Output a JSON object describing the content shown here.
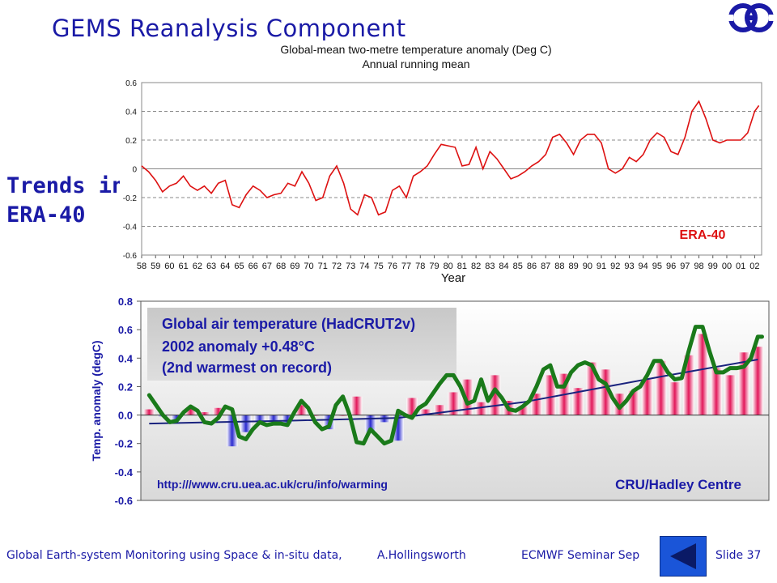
{
  "slide": {
    "title": "GEMS Reanalysis Component",
    "side_heading_line1": "Trends in",
    "side_heading_line2": "ERA-40",
    "footer_left": "Global Earth-system Monitoring using Space & in-situ data,",
    "footer_author": "A.Hollingsworth",
    "footer_mid": "ECMWF Seminar Sep",
    "footer_right": "Slide 37",
    "logo_icon": "ecmwf-logo-icon",
    "nav_icon": "triangle-left-icon"
  },
  "chart_data": [
    {
      "type": "line",
      "title": "Global-mean two-metre temperature anomaly (Deg C)",
      "subtitle": "Annual running mean",
      "xlabel": "Year",
      "ylabel": "",
      "ylim": [
        -0.6,
        0.6
      ],
      "yticks": [
        "0.6",
        "0.4",
        "0.2",
        "0",
        "-0.2",
        "-0.4",
        "-0.6"
      ],
      "xticks": [
        "58",
        "59",
        "60",
        "61",
        "62",
        "63",
        "64",
        "65",
        "66",
        "67",
        "68",
        "69",
        "70",
        "71",
        "72",
        "73",
        "74",
        "75",
        "76",
        "77",
        "78",
        "79",
        "80",
        "81",
        "82",
        "83",
        "84",
        "85",
        "86",
        "87",
        "88",
        "89",
        "90",
        "91",
        "92",
        "93",
        "94",
        "95",
        "96",
        "97",
        "98",
        "99",
        "00",
        "01",
        "02"
      ],
      "grid": true,
      "series": [
        {
          "name": "ERA-40",
          "color": "#dd1111",
          "x": [
            1958.0,
            1958.5,
            1959.0,
            1959.5,
            1960.0,
            1960.5,
            1961.0,
            1961.5,
            1962.0,
            1962.5,
            1963.0,
            1963.5,
            1964.0,
            1964.5,
            1965.0,
            1965.5,
            1966.0,
            1966.5,
            1967.0,
            1967.5,
            1968.0,
            1968.5,
            1969.0,
            1969.5,
            1970.0,
            1970.5,
            1971.0,
            1971.5,
            1972.0,
            1972.5,
            1973.0,
            1973.5,
            1974.0,
            1974.5,
            1975.0,
            1975.5,
            1976.0,
            1976.5,
            1977.0,
            1977.5,
            1978.0,
            1978.5,
            1979.0,
            1979.5,
            1980.0,
            1980.5,
            1981.0,
            1981.5,
            1982.0,
            1982.5,
            1983.0,
            1983.5,
            1984.0,
            1984.5,
            1985.0,
            1985.5,
            1986.0,
            1986.5,
            1987.0,
            1987.5,
            1988.0,
            1988.5,
            1989.0,
            1989.5,
            1990.0,
            1990.5,
            1991.0,
            1991.5,
            1992.0,
            1992.5,
            1993.0,
            1993.5,
            1994.0,
            1994.5,
            1995.0,
            1995.5,
            1996.0,
            1996.5,
            1997.0,
            1997.5,
            1998.0,
            1998.5,
            1999.0,
            1999.5,
            2000.0,
            2000.5,
            2001.0,
            2001.5,
            2002.0,
            2002.3
          ],
          "values": [
            0.02,
            -0.02,
            -0.08,
            -0.16,
            -0.12,
            -0.1,
            -0.05,
            -0.12,
            -0.15,
            -0.12,
            -0.17,
            -0.1,
            -0.08,
            -0.25,
            -0.27,
            -0.18,
            -0.12,
            -0.15,
            -0.2,
            -0.18,
            -0.17,
            -0.1,
            -0.12,
            -0.02,
            -0.1,
            -0.22,
            -0.2,
            -0.05,
            0.02,
            -0.1,
            -0.28,
            -0.32,
            -0.18,
            -0.2,
            -0.32,
            -0.3,
            -0.15,
            -0.12,
            -0.2,
            -0.05,
            -0.02,
            0.02,
            0.1,
            0.17,
            0.16,
            0.15,
            0.02,
            0.03,
            0.15,
            0.0,
            0.12,
            0.07,
            0.0,
            -0.07,
            -0.05,
            -0.02,
            0.02,
            0.05,
            0.1,
            0.22,
            0.24,
            0.18,
            0.1,
            0.2,
            0.24,
            0.24,
            0.18,
            0.0,
            -0.03,
            0.0,
            0.08,
            0.05,
            0.1,
            0.2,
            0.25,
            0.22,
            0.12,
            0.1,
            0.22,
            0.4,
            0.47,
            0.35,
            0.2,
            0.18,
            0.2,
            0.2,
            0.2,
            0.25,
            0.4,
            0.44
          ]
        }
      ],
      "annotation": "ERA-40"
    },
    {
      "type": "bar",
      "title": "Global air temperature (HadCRUT2v)",
      "info_line2": "2002 anomaly +0.48°C",
      "info_line3": "(2nd warmest on record)",
      "xlabel": "",
      "ylabel": "Temp. anomaly (degC)",
      "ylim": [
        -0.6,
        0.8
      ],
      "yticks": [
        "0.8",
        "0.6",
        "0.4",
        "0.2",
        "0.0",
        "-0.2",
        "-0.4",
        "-0.6"
      ],
      "grid": false,
      "url": "http:///www.cru.uea.ac.uk/cru/info/warming",
      "source": "CRU/Hadley Centre",
      "bars": {
        "x": [
          1958,
          1959,
          1960,
          1961,
          1962,
          1963,
          1964,
          1965,
          1966,
          1967,
          1968,
          1969,
          1970,
          1971,
          1972,
          1973,
          1974,
          1975,
          1976,
          1977,
          1978,
          1979,
          1980,
          1981,
          1982,
          1983,
          1984,
          1985,
          1986,
          1987,
          1988,
          1989,
          1990,
          1991,
          1992,
          1993,
          1994,
          1995,
          1996,
          1997,
          1998,
          1999,
          2000,
          2001,
          2002
        ],
        "values": [
          0.04,
          -0.01,
          -0.03,
          0.05,
          0.02,
          0.05,
          -0.22,
          -0.12,
          -0.05,
          -0.04,
          -0.06,
          0.07,
          0.0,
          -0.1,
          0.0,
          0.13,
          -0.12,
          -0.05,
          -0.18,
          0.12,
          0.04,
          0.07,
          0.16,
          0.25,
          0.09,
          0.28,
          0.1,
          0.06,
          0.15,
          0.28,
          0.29,
          0.19,
          0.37,
          0.32,
          0.15,
          0.17,
          0.25,
          0.38,
          0.23,
          0.42,
          0.57,
          0.33,
          0.28,
          0.44,
          0.48
        ]
      },
      "series": [
        {
          "name": "ERA-40",
          "color": "#1a7a1a",
          "x": [
            1958.0,
            1958.5,
            1959.0,
            1959.5,
            1960.0,
            1960.5,
            1961.0,
            1961.5,
            1962.0,
            1962.5,
            1963.0,
            1963.5,
            1964.0,
            1964.5,
            1965.0,
            1965.5,
            1966.0,
            1966.5,
            1967.0,
            1967.5,
            1968.0,
            1968.5,
            1969.0,
            1969.5,
            1970.0,
            1970.5,
            1971.0,
            1971.5,
            1972.0,
            1972.5,
            1973.0,
            1973.5,
            1974.0,
            1974.5,
            1975.0,
            1975.5,
            1976.0,
            1976.5,
            1977.0,
            1977.5,
            1978.0,
            1978.5,
            1979.0,
            1979.5,
            1980.0,
            1980.5,
            1981.0,
            1981.5,
            1982.0,
            1982.5,
            1983.0,
            1983.5,
            1984.0,
            1984.5,
            1985.0,
            1985.5,
            1986.0,
            1986.5,
            1987.0,
            1987.5,
            1988.0,
            1988.5,
            1989.0,
            1989.5,
            1990.0,
            1990.5,
            1991.0,
            1991.5,
            1992.0,
            1992.5,
            1993.0,
            1993.5,
            1994.0,
            1994.5,
            1995.0,
            1995.5,
            1996.0,
            1996.5,
            1997.0,
            1997.5,
            1998.0,
            1998.5,
            1999.0,
            1999.5,
            2000.0,
            2000.5,
            2001.0,
            2001.5,
            2002.0,
            2002.3
          ],
          "values": [
            0.14,
            0.07,
            0.0,
            -0.05,
            -0.04,
            0.02,
            0.06,
            0.03,
            -0.05,
            -0.06,
            -0.02,
            0.06,
            0.04,
            -0.15,
            -0.17,
            -0.1,
            -0.05,
            -0.07,
            -0.06,
            -0.06,
            -0.07,
            0.02,
            0.1,
            0.05,
            -0.05,
            -0.1,
            -0.08,
            0.07,
            0.13,
            0.0,
            -0.19,
            -0.2,
            -0.1,
            -0.15,
            -0.2,
            -0.18,
            0.03,
            0.0,
            -0.02,
            0.05,
            0.08,
            0.15,
            0.22,
            0.28,
            0.28,
            0.2,
            0.08,
            0.1,
            0.25,
            0.1,
            0.18,
            0.12,
            0.04,
            0.03,
            0.06,
            0.1,
            0.2,
            0.32,
            0.35,
            0.2,
            0.2,
            0.3,
            0.35,
            0.37,
            0.35,
            0.25,
            0.22,
            0.12,
            0.05,
            0.1,
            0.17,
            0.2,
            0.28,
            0.38,
            0.38,
            0.3,
            0.25,
            0.26,
            0.45,
            0.62,
            0.62,
            0.45,
            0.3,
            0.3,
            0.33,
            0.33,
            0.34,
            0.4,
            0.55,
            0.55
          ]
        },
        {
          "name": "",
          "color": "#1a237e",
          "x": [
            1958,
            1968,
            1976,
            1985,
            1995,
            2002
          ],
          "values": [
            -0.06,
            -0.04,
            -0.02,
            0.09,
            0.27,
            0.39
          ]
        }
      ]
    }
  ]
}
